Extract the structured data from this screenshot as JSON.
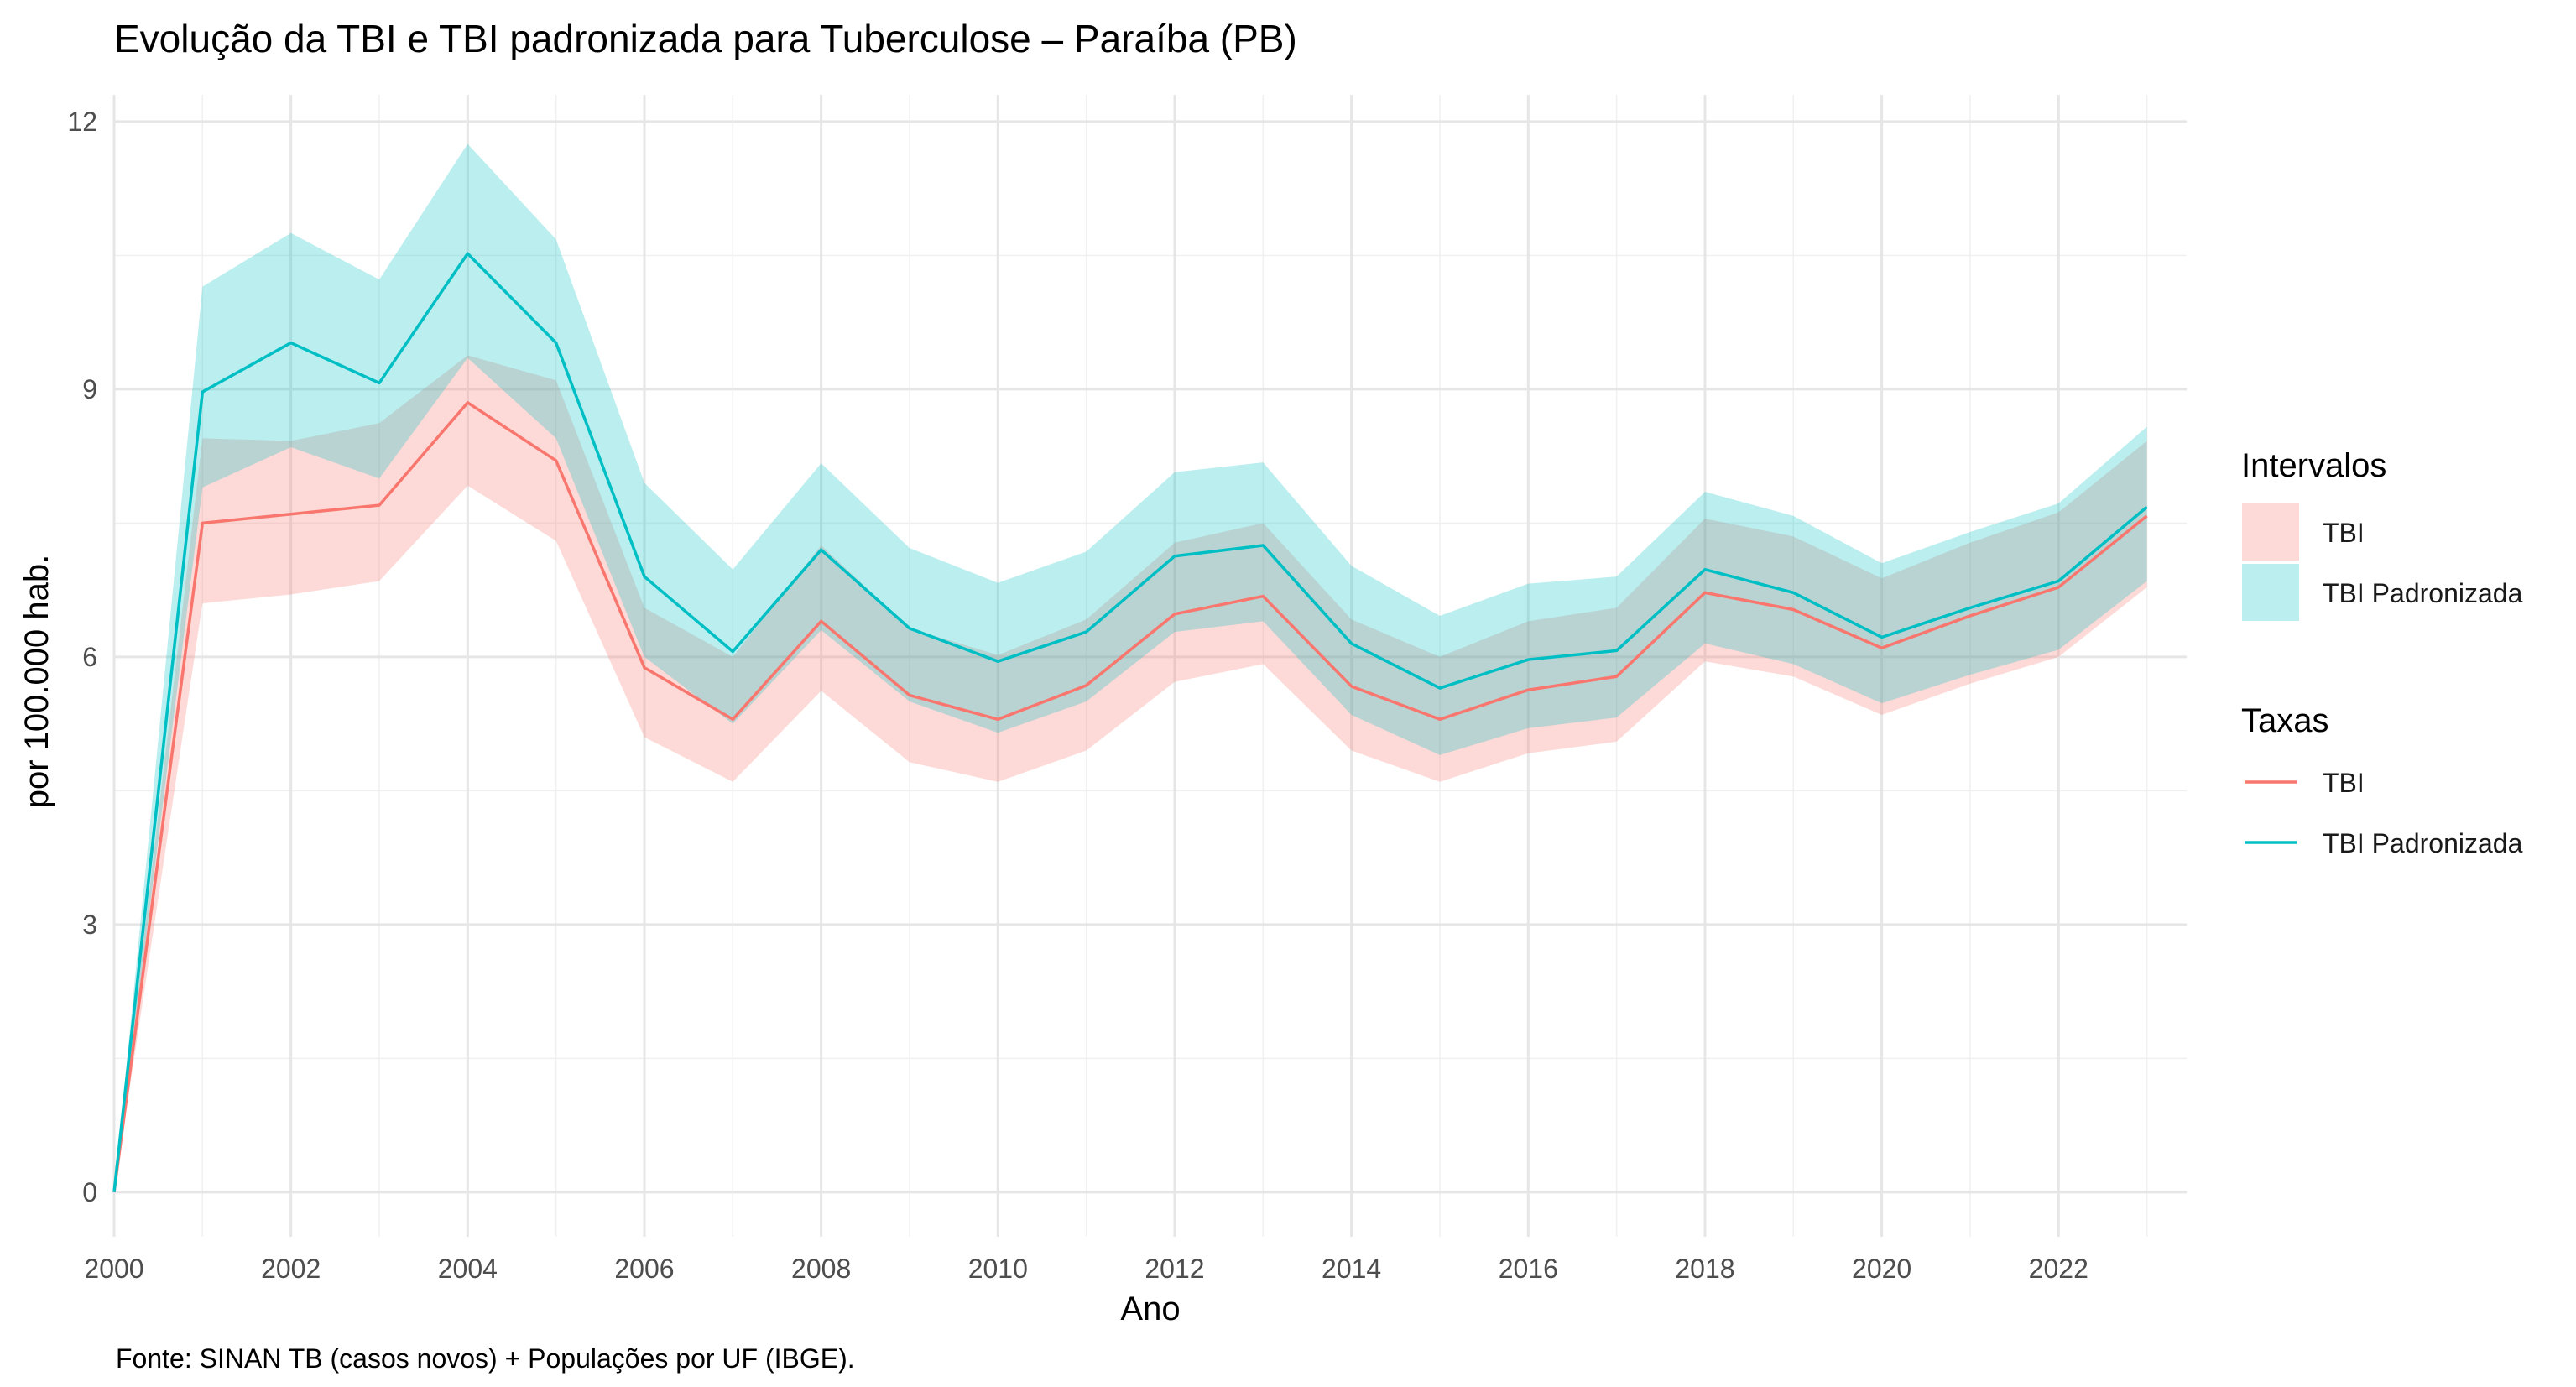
{
  "chart_data": {
    "type": "line",
    "title": "Evolução da TBI e TBI padronizada para Tuberculose – Paraíba (PB)",
    "xlabel": "Ano",
    "ylabel": "por 100.000 hab.",
    "caption": "Fonte: SINAN TB (casos novos) + Populações por UF (IBGE).",
    "xlim": [
      2000,
      2023.45
    ],
    "ylim": [
      -0.5,
      12.3
    ],
    "x_ticks": [
      "2000",
      "2002",
      "2004",
      "2006",
      "2008",
      "2010",
      "2012",
      "2014",
      "2016",
      "2018",
      "2020",
      "2022"
    ],
    "y_ticks": [
      "0",
      "3",
      "6",
      "9",
      "12"
    ],
    "grid": true,
    "x": [
      2000,
      2001,
      2002,
      2003,
      2004,
      2005,
      2006,
      2007,
      2008,
      2009,
      2010,
      2011,
      2012,
      2013,
      2014,
      2015,
      2016,
      2017,
      2018,
      2019,
      2020,
      2021,
      2022,
      2023
    ],
    "series": [
      {
        "name": "TBI",
        "color": "#F8766D",
        "values": [
          0,
          7.5,
          7.6,
          7.7,
          8.85,
          8.2,
          5.88,
          5.3,
          6.4,
          5.57,
          5.3,
          5.68,
          6.48,
          6.68,
          5.67,
          5.3,
          5.63,
          5.78,
          6.72,
          6.53,
          6.1,
          6.46,
          6.78,
          7.58
        ],
        "lower": [
          0,
          6.6,
          6.7,
          6.85,
          7.92,
          7.3,
          5.1,
          4.6,
          5.62,
          4.82,
          4.6,
          4.95,
          5.72,
          5.92,
          4.95,
          4.6,
          4.92,
          5.05,
          5.95,
          5.78,
          5.35,
          5.7,
          6.0,
          6.78
        ],
        "upper": [
          0,
          8.45,
          8.42,
          8.62,
          9.38,
          9.1,
          6.55,
          6.0,
          7.25,
          6.32,
          6.02,
          6.42,
          7.28,
          7.5,
          6.42,
          6.0,
          6.4,
          6.55,
          7.55,
          7.35,
          6.88,
          7.28,
          7.62,
          8.42
        ]
      },
      {
        "name": "TBI Padronizada",
        "color": "#00BFC4",
        "values": [
          0,
          8.97,
          9.52,
          9.07,
          10.52,
          9.52,
          6.9,
          6.06,
          7.2,
          6.32,
          5.95,
          6.28,
          7.13,
          7.25,
          6.15,
          5.65,
          5.97,
          6.07,
          6.98,
          6.72,
          6.22,
          6.55,
          6.85,
          7.68
        ],
        "lower": [
          0,
          7.9,
          8.35,
          8.0,
          9.35,
          8.45,
          6.0,
          5.25,
          6.3,
          5.5,
          5.15,
          5.5,
          6.28,
          6.4,
          5.35,
          4.9,
          5.2,
          5.32,
          6.15,
          5.92,
          5.48,
          5.8,
          6.08,
          6.85
        ],
        "upper": [
          0,
          10.15,
          10.75,
          10.23,
          11.75,
          10.68,
          7.95,
          6.98,
          8.17,
          7.22,
          6.83,
          7.18,
          8.07,
          8.18,
          7.02,
          6.46,
          6.82,
          6.9,
          7.85,
          7.58,
          7.05,
          7.4,
          7.72,
          8.58
        ]
      }
    ],
    "legend": {
      "placement": "right",
      "bands_title": "Intervalos",
      "lines_title": "Taxas",
      "items": [
        "TBI",
        "TBI Padronizada"
      ],
      "band_colors": [
        "#F8766D",
        "#00BFC4"
      ]
    }
  }
}
